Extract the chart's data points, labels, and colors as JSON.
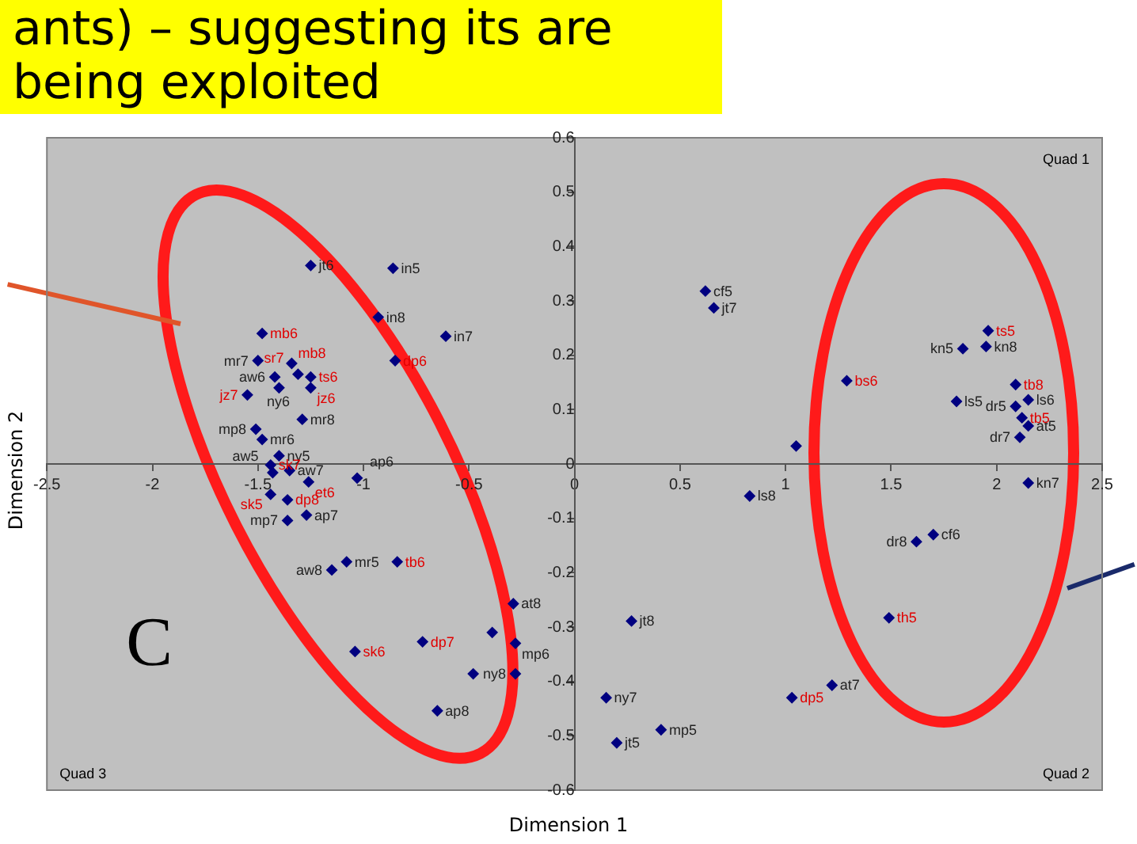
{
  "chart_data": {
    "type": "scatter",
    "title": "ants) – suggesting its are being exploited",
    "xlabel": "Dimension 1",
    "ylabel": "Dimension 2",
    "xlim": [
      -2.5,
      2.5
    ],
    "xticks": [
      -2.5,
      -2,
      -1.5,
      -1,
      -0.5,
      0,
      0.5,
      1,
      1.5,
      2,
      2.5
    ],
    "ylim": [
      -0.6,
      0.6
    ],
    "yticks": [
      -0.6,
      -0.5,
      -0.4,
      -0.3,
      -0.2,
      -0.1,
      0,
      0.1,
      0.2,
      0.3,
      0.4,
      0.5,
      0.6
    ],
    "grid": false,
    "legend": false,
    "marker": "diamond",
    "annotations": [
      "Quad 1",
      "Quad 2",
      "Quad 3",
      "C"
    ],
    "series": [
      {
        "color": "#000080",
        "x": [
          -1.25,
          -0.86,
          -0.93,
          -0.61,
          -1.5,
          -1.42,
          -1.4,
          -1.29,
          -1.51,
          -1.48,
          -1.4,
          -1.43,
          -1.35,
          -1.03,
          -1.27,
          -1.36,
          -1.08,
          -1.15,
          -0.29,
          -0.39,
          -0.28,
          -0.48,
          -0.28,
          -0.65,
          0.62,
          0.66,
          1.84,
          1.95,
          1.81,
          2.15,
          2.09,
          2.15,
          2.11,
          1.05,
          2.15,
          0.83,
          1.7,
          1.62,
          0.27,
          1.22,
          0.15,
          0.41,
          0.2
        ],
        "values": [
          0.365,
          0.36,
          0.27,
          0.235,
          0.19,
          0.16,
          0.14,
          0.082,
          0.064,
          0.045,
          0.015,
          -0.016,
          -0.012,
          -0.026,
          -0.094,
          -0.104,
          -0.18,
          -0.195,
          -0.257,
          -0.31,
          -0.33,
          -0.386,
          -0.386,
          -0.454,
          0.318,
          0.287,
          0.212,
          0.216,
          0.115,
          0.118,
          0.106,
          0.07,
          0.049,
          0.033,
          -0.035,
          -0.059,
          -0.13,
          -0.143,
          -0.289,
          -0.407,
          -0.43,
          -0.489,
          -0.513
        ],
        "value_labels": [
          "jt6",
          "in5",
          "in8",
          "in7",
          "mr7",
          "aw6",
          "ny6",
          "mr8",
          "mp8",
          "mr6",
          "ny5",
          "aw5",
          "aw7",
          "ap6",
          "ap7",
          "mp7",
          "mr5",
          "aw8",
          "at8",
          null,
          "mp6",
          null,
          "ny8",
          "ap8",
          "cf5",
          "jt7",
          "kn5",
          "kn8",
          "ls5",
          "ls6",
          "dr5",
          "at5",
          "dr7",
          null,
          "kn7",
          "ls8",
          "cf6",
          "dr8",
          "jt8",
          "at7",
          "ny7",
          "mp5",
          "jt5"
        ]
      },
      {
        "color": "#000080",
        "x": [
          -1.48,
          -0.85,
          -1.34,
          -1.31,
          -1.25,
          -1.25,
          -1.55,
          -1.44,
          -1.26,
          -1.44,
          -1.36,
          -0.84,
          -0.72,
          -1.04,
          1.96,
          1.29,
          2.09,
          2.12,
          1.49,
          1.03
        ],
        "values": [
          0.24,
          0.19,
          0.185,
          0.165,
          0.16,
          0.14,
          0.127,
          -0.002,
          -0.033,
          -0.056,
          -0.066,
          -0.18,
          -0.327,
          -0.345,
          0.245,
          0.153,
          0.146,
          0.085,
          -0.283,
          -0.43
        ],
        "value_labels": [
          "mb6",
          "dp6",
          "mb8",
          "sr7",
          "ts6",
          "jz6",
          "jz7",
          "sk7",
          "et6",
          "sk5",
          "dp8",
          "tb6",
          "dp7",
          "sk6",
          "ts5",
          "bs6",
          "tb8",
          "tb5",
          "th5",
          "dp5"
        ]
      }
    ]
  }
}
